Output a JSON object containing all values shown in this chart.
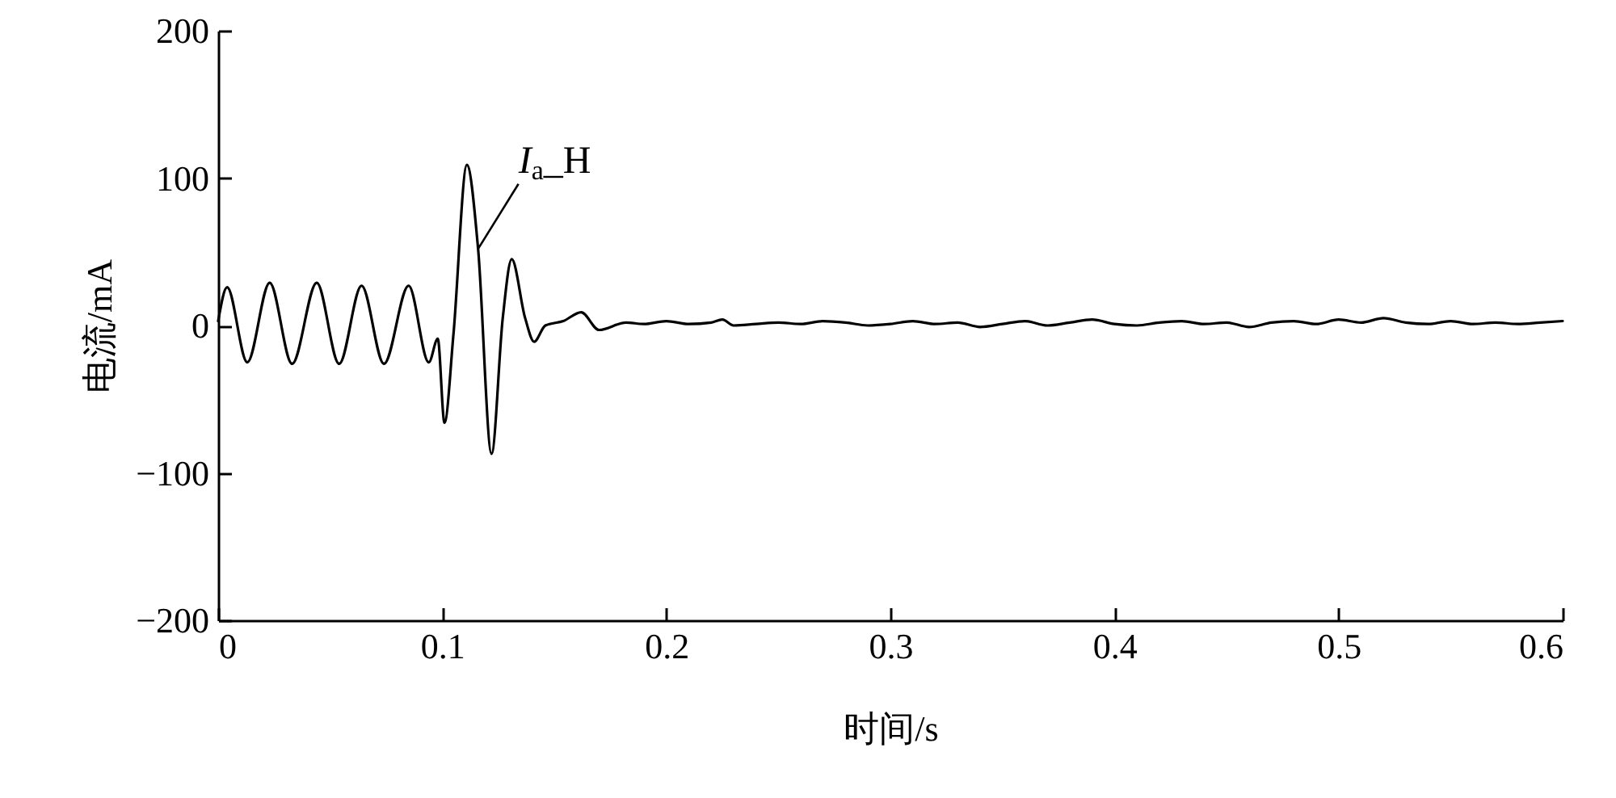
{
  "chart_data": {
    "type": "line",
    "xlabel": "时间/s",
    "ylabel": "电流/mA",
    "xlim": [
      0,
      0.6
    ],
    "xticks": [
      0,
      0.1,
      0.2,
      0.3,
      0.4,
      0.5,
      0.6
    ],
    "ylim": [
      -200,
      200
    ],
    "yticks": [
      -200,
      -100,
      0,
      100,
      200
    ],
    "grid": false,
    "legend": false,
    "series": [
      {
        "color": "#000000",
        "x": [
          0,
          0.004,
          0.013,
          0.023,
          0.033,
          0.044,
          0.054,
          0.064,
          0.074,
          0.085,
          0.094,
          0.098,
          0.101,
          0.105,
          0.111,
          0.116,
          0.122,
          0.127,
          0.131,
          0.137,
          0.141,
          0.146,
          0.154,
          0.162,
          0.17,
          0.182,
          0.19,
          0.2,
          0.21,
          0.22,
          0.225,
          0.23,
          0.24,
          0.25,
          0.26,
          0.27,
          0.28,
          0.29,
          0.3,
          0.31,
          0.32,
          0.33,
          0.34,
          0.35,
          0.36,
          0.37,
          0.38,
          0.39,
          0.4,
          0.41,
          0.42,
          0.43,
          0.44,
          0.45,
          0.46,
          0.47,
          0.48,
          0.49,
          0.5,
          0.51,
          0.52,
          0.53,
          0.54,
          0.55,
          0.56,
          0.57,
          0.58,
          0.59,
          0.6
        ],
        "values": [
          3,
          26,
          -25,
          29,
          -26,
          29,
          -26,
          27,
          -26,
          27,
          -25,
          -9,
          -66,
          -6,
          109,
          52,
          -87,
          5,
          45,
          5,
          -11,
          0,
          3,
          9,
          -3,
          2,
          1,
          3,
          1,
          2,
          4,
          0,
          1,
          2,
          1,
          3,
          2,
          0,
          1,
          3,
          1,
          2,
          -1,
          1,
          3,
          0,
          2,
          4,
          1,
          0,
          2,
          3,
          1,
          2,
          -1,
          2,
          3,
          1,
          4,
          2,
          5,
          2,
          1,
          3,
          1,
          2,
          1,
          2,
          3
        ]
      }
    ],
    "annotations": [
      {
        "text": "I$_{a}$_H",
        "x": 0.116,
        "y": 52
      }
    ]
  }
}
